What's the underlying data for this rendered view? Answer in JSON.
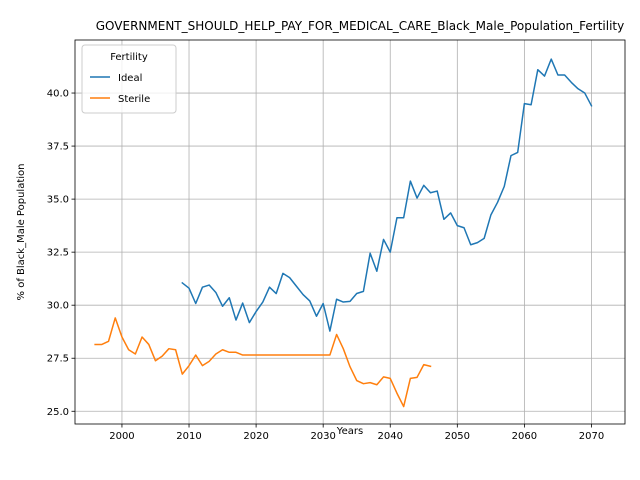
{
  "chart_data": {
    "type": "line",
    "title": "GOVERNMENT_SHOULD_HELP_PAY_FOR_MEDICAL_CARE_Black_Male_Population_Fertility",
    "xlabel": "Years",
    "ylabel": "% of Black_Male Population",
    "xlim": [
      1993,
      2075
    ],
    "ylim": [
      24.4,
      42.5
    ],
    "xticks": [
      2000,
      2010,
      2020,
      2030,
      2040,
      2050,
      2060,
      2070
    ],
    "yticks": [
      25.0,
      27.5,
      30.0,
      32.5,
      35.0,
      37.5,
      40.0
    ],
    "ytick_labels": [
      "25.0",
      "27.5",
      "30.0",
      "32.5",
      "35.0",
      "37.5",
      "40.0"
    ],
    "grid": true,
    "legend": {
      "title": "Fertility",
      "position": "upper-left"
    },
    "series": [
      {
        "name": "Ideal",
        "color": "#1f77b4",
        "x": [
          2009,
          2010,
          2011,
          2012,
          2013,
          2014,
          2015,
          2016,
          2017,
          2018,
          2019,
          2020,
          2021,
          2022,
          2023,
          2024,
          2025,
          2026,
          2027,
          2028,
          2029,
          2030,
          2031,
          2032,
          2033,
          2034,
          2035,
          2036,
          2037,
          2038,
          2039,
          2040,
          2041,
          2042,
          2043,
          2044,
          2045,
          2046,
          2047,
          2048,
          2049,
          2050,
          2051,
          2052,
          2053,
          2054,
          2055,
          2056,
          2057,
          2058,
          2059,
          2060,
          2061,
          2062,
          2063,
          2064,
          2065,
          2066,
          2067,
          2068,
          2069,
          2070
        ],
        "y": [
          31.05,
          30.8,
          30.08,
          30.85,
          30.95,
          30.6,
          29.95,
          30.35,
          29.3,
          30.1,
          29.18,
          29.7,
          30.15,
          30.85,
          30.55,
          31.5,
          31.3,
          30.9,
          30.5,
          30.2,
          29.48,
          30.08,
          28.78,
          30.28,
          30.15,
          30.18,
          30.55,
          30.65,
          32.45,
          31.6,
          33.1,
          32.5,
          34.12,
          34.12,
          35.85,
          35.05,
          35.65,
          35.3,
          35.38,
          34.05,
          34.35,
          33.75,
          33.65,
          32.85,
          32.95,
          33.15,
          34.25,
          34.85,
          35.6,
          37.05,
          37.2,
          39.5,
          39.45,
          41.1,
          40.8,
          41.6,
          40.85,
          40.85,
          40.5,
          40.2,
          40.0,
          39.4
        ]
      },
      {
        "name": "Sterile",
        "color": "#ff7f0e",
        "x": [
          1996,
          1997,
          1998,
          1999,
          2000,
          2001,
          2002,
          2003,
          2004,
          2005,
          2006,
          2007,
          2008,
          2009,
          2010,
          2011,
          2012,
          2013,
          2014,
          2015,
          2016,
          2017,
          2018,
          2019,
          2020,
          2021,
          2022,
          2023,
          2024,
          2025,
          2026,
          2027,
          2028,
          2029,
          2030,
          2031,
          2032,
          2033,
          2034,
          2035,
          2036,
          2037,
          2038,
          2039,
          2040,
          2041,
          2042,
          2043,
          2044,
          2045,
          2046
        ],
        "y": [
          28.15,
          28.15,
          28.3,
          29.4,
          28.5,
          27.9,
          27.7,
          28.5,
          28.15,
          27.38,
          27.6,
          27.95,
          27.9,
          26.75,
          27.15,
          27.65,
          27.15,
          27.35,
          27.7,
          27.9,
          27.78,
          27.78,
          27.65,
          27.65,
          27.65,
          27.65,
          27.65,
          27.65,
          27.65,
          27.65,
          27.65,
          27.65,
          27.65,
          27.65,
          27.65,
          27.65,
          28.62,
          27.95,
          27.1,
          26.45,
          26.3,
          26.35,
          26.25,
          26.62,
          26.55,
          25.85,
          25.22,
          26.55,
          26.6,
          27.2,
          27.12
        ]
      }
    ]
  }
}
